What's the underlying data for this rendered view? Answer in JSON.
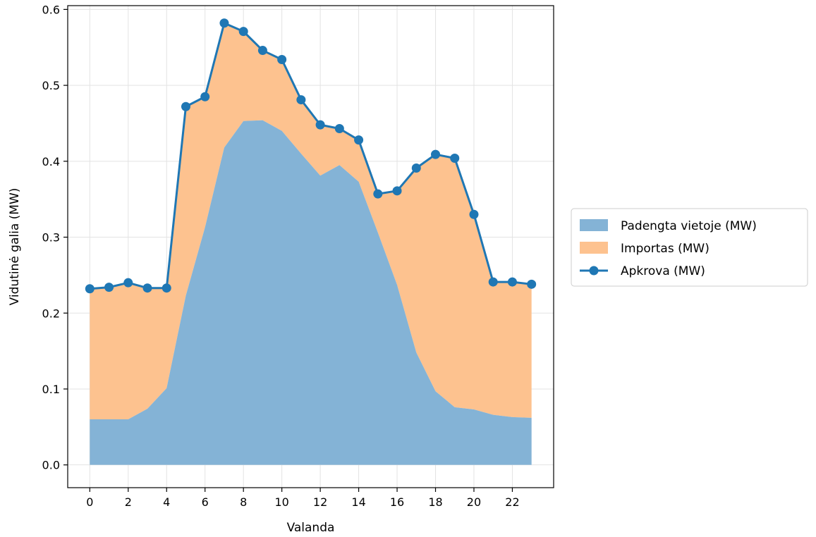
{
  "chart_data": {
    "type": "area",
    "title": "",
    "xlabel": "Valanda",
    "ylabel": "Vidutinė galia (MW)",
    "x": [
      0,
      1,
      2,
      3,
      4,
      5,
      6,
      7,
      8,
      9,
      10,
      11,
      12,
      13,
      14,
      15,
      16,
      17,
      18,
      19,
      20,
      21,
      22,
      23
    ],
    "xticks": [
      0,
      2,
      4,
      6,
      8,
      10,
      12,
      14,
      16,
      18,
      20,
      22
    ],
    "yticks": [
      0.0,
      0.1,
      0.2,
      0.3,
      0.4,
      0.5,
      0.6
    ],
    "xlim": [
      -1.15,
      24.15
    ],
    "ylim": [
      -0.03,
      0.605
    ],
    "grid": true,
    "legend_position": "right",
    "series": [
      {
        "name": "Padengta vietoje (MW)",
        "kind": "area",
        "color": "#84b3d6",
        "values": [
          0.06,
          0.06,
          0.06,
          0.074,
          0.101,
          0.223,
          0.313,
          0.418,
          0.453,
          0.454,
          0.44,
          0.41,
          0.381,
          0.395,
          0.373,
          0.306,
          0.237,
          0.148,
          0.097,
          0.076,
          0.073,
          0.066,
          0.063,
          0.062
        ]
      },
      {
        "name": "Importas (MW)",
        "kind": "area",
        "color": "#fdc28f",
        "values": [
          0.172,
          0.174,
          0.18,
          0.159,
          0.132,
          0.249,
          0.172,
          0.164,
          0.118,
          0.092,
          0.094,
          0.071,
          0.067,
          0.048,
          0.055,
          0.051,
          0.124,
          0.243,
          0.312,
          0.328,
          0.257,
          0.175,
          0.178,
          0.176
        ]
      },
      {
        "name": "Apkrova (MW)",
        "kind": "line",
        "color": "#1f77b4",
        "values": [
          0.232,
          0.234,
          0.24,
          0.233,
          0.233,
          0.472,
          0.485,
          0.582,
          0.571,
          0.546,
          0.534,
          0.481,
          0.448,
          0.443,
          0.428,
          0.357,
          0.361,
          0.391,
          0.409,
          0.404,
          0.33,
          0.241,
          0.241,
          0.238
        ]
      }
    ]
  }
}
